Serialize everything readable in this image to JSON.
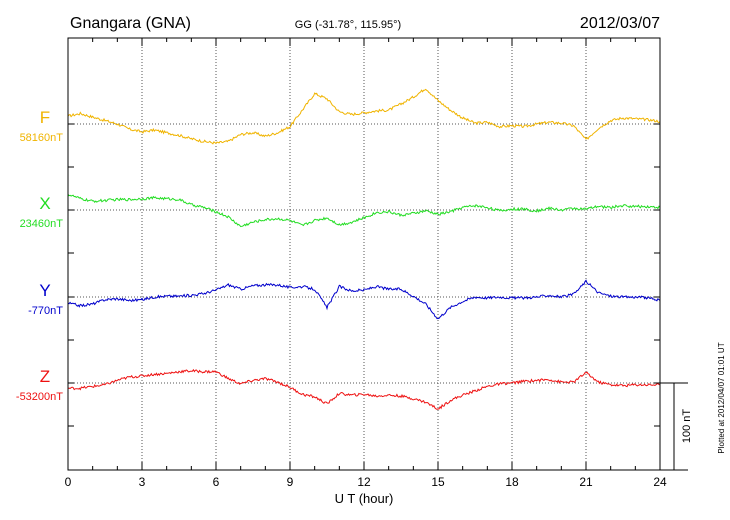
{
  "header": {
    "station": "Gnangara (GNA)",
    "coords": "GG (-31.78°, 115.95°)",
    "date": "2012/03/07"
  },
  "footer": {
    "plotted": "Plotted at 2012/04/07 01:01  UT",
    "scale_label": "100 nT"
  },
  "chart_data": {
    "type": "line",
    "xlabel": "U T (hour)",
    "xlim": [
      0,
      24
    ],
    "xticks": [
      0,
      3,
      6,
      9,
      12,
      15,
      18,
      21,
      24
    ],
    "x_tick_labels": [
      "0",
      "3",
      "6",
      "9",
      "12",
      "15",
      "18",
      "21",
      "24"
    ],
    "grid": true,
    "x_hours": [
      0,
      0.5,
      1,
      1.5,
      2,
      2.5,
      3,
      3.5,
      4,
      4.5,
      5,
      5.5,
      6,
      6.5,
      7,
      7.5,
      8,
      8.5,
      9,
      9.5,
      10,
      10.5,
      11,
      11.5,
      12,
      12.5,
      13,
      13.5,
      14,
      14.5,
      15,
      15.5,
      16,
      16.5,
      17,
      17.5,
      18,
      18.5,
      19,
      19.5,
      20,
      20.5,
      21,
      21.5,
      22,
      22.5,
      23,
      23.5,
      24
    ],
    "series": [
      {
        "name": "F",
        "baseline_label": "58160nT",
        "baseline_nT": 58160,
        "color": "#f0b400",
        "values_rel_nT": [
          9,
          12,
          8,
          4,
          0,
          -6,
          -9,
          -7,
          -10,
          -13,
          -17,
          -20,
          -22,
          -20,
          -12,
          -10,
          -14,
          -10,
          -3,
          16,
          35,
          29,
          14,
          11,
          13,
          15,
          16,
          23,
          31,
          41,
          27,
          16,
          7,
          1,
          2,
          -3,
          -2,
          -3,
          0,
          2,
          1,
          -2,
          -18,
          -5,
          4,
          7,
          6,
          5,
          3
        ]
      },
      {
        "name": "X",
        "baseline_label": "23460nT",
        "baseline_nT": 23460,
        "color": "#22dd22",
        "values_rel_nT": [
          18,
          13,
          10,
          11,
          12,
          12,
          13,
          14,
          13,
          12,
          6,
          3,
          -2,
          -8,
          -19,
          -14,
          -11,
          -10,
          -12,
          -18,
          -12,
          -9,
          -17,
          -14,
          -9,
          -3,
          -2,
          -6,
          -4,
          -1,
          -5,
          -2,
          3,
          5,
          3,
          -1,
          1,
          1,
          -1,
          2,
          0,
          2,
          1,
          4,
          3,
          5,
          4,
          4,
          3
        ]
      },
      {
        "name": "Y",
        "baseline_label": "-770nT",
        "baseline_nT": -770,
        "color": "#0000cc",
        "values_rel_nT": [
          -7,
          -10,
          -8,
          -3,
          -2,
          -4,
          -3,
          0,
          1,
          1,
          2,
          4,
          8,
          14,
          9,
          13,
          14,
          14,
          11,
          12,
          9,
          -12,
          12,
          7,
          8,
          12,
          9,
          9,
          1,
          -8,
          -25,
          -12,
          -5,
          0,
          -1,
          0,
          -1,
          -1,
          0,
          2,
          0,
          3,
          18,
          5,
          1,
          0,
          0,
          -1,
          -4
        ]
      },
      {
        "name": "Z",
        "baseline_label": "-53200nT",
        "baseline_nT": -53200,
        "color": "#ee1111",
        "values_rel_nT": [
          -6,
          -6,
          -4,
          -2,
          3,
          7,
          8,
          10,
          11,
          13,
          14,
          13,
          13,
          5,
          -1,
          3,
          5,
          1,
          -5,
          -13,
          -16,
          -24,
          -12,
          -14,
          -13,
          -15,
          -14,
          -15,
          -18,
          -22,
          -30,
          -20,
          -14,
          -9,
          -4,
          -1,
          0,
          2,
          3,
          4,
          1,
          1,
          12,
          1,
          -2,
          -3,
          -2,
          -2,
          -2
        ]
      }
    ],
    "y_scale_bar_nT": 100
  }
}
